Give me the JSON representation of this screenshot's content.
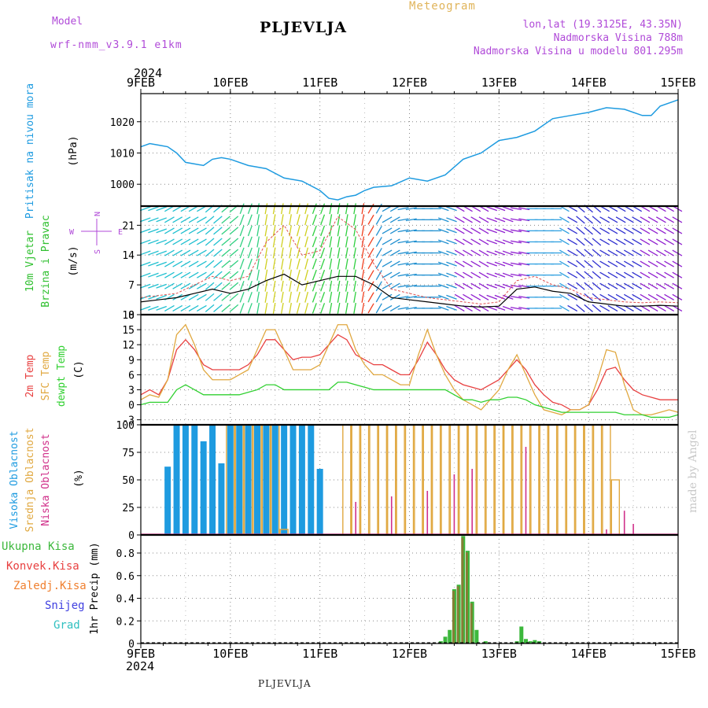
{
  "header": {
    "model_label": "Model",
    "model_name": "wrf-nmm_v3.9.1 e1km",
    "title": "PLJEVLJA",
    "meteogram_label": "Meteogram",
    "lonlat": "lon,lat (19.3125E, 43.35N)",
    "elevation": "Nadmorska Visina 788m",
    "model_elevation": "Nadmorska Visina u modelu 801.295m",
    "year_top": "2024",
    "year_bottom": "2024",
    "bottom_title": "PLJEVLJA",
    "watermark": "made by Angel"
  },
  "colors": {
    "pressure": "#1e9be0",
    "temp2m": "#e84040",
    "sfc": "#e0a840",
    "dewpt": "#30d030",
    "high_cloud": "#1e9be0",
    "mid_cloud": "#e0a840",
    "low_cloud": "#d0308a",
    "precip_total": "#3cb83c",
    "precip_conv": "#e84040",
    "precip_frozen": "#f08030",
    "precip_snow": "#4040e0",
    "precip_grad": "#30c0c0",
    "wind_label": "#30c030",
    "compass": "#b04ad8"
  },
  "chart_data": [
    {
      "type": "line",
      "panel": "pressure",
      "ylabel_colored": "Pritisak na nivou mora",
      "ylabel_unit": "(hPa)",
      "x_days": [
        "9FEB",
        "10FEB",
        "11FEB",
        "12FEB",
        "13FEB",
        "14FEB",
        "15FEB"
      ],
      "yticks": [
        1000,
        1010,
        1020
      ],
      "ylim": [
        993,
        1029
      ],
      "grid": true,
      "x": [
        0,
        0.1,
        0.2,
        0.3,
        0.4,
        0.5,
        0.6,
        0.7,
        0.8,
        0.9,
        1.0,
        1.2,
        1.4,
        1.6,
        1.8,
        2.0,
        2.1,
        2.2,
        2.3,
        2.4,
        2.5,
        2.6,
        2.8,
        3.0,
        3.2,
        3.4,
        3.6,
        3.8,
        4.0,
        4.2,
        4.4,
        4.6,
        4.8,
        5.0,
        5.2,
        5.4,
        5.6,
        5.7,
        5.8,
        6.0
      ],
      "series": [
        {
          "name": "",
          "values": [
            1012,
            1013,
            1012.5,
            1012,
            1010,
            1007,
            1006.5,
            1006,
            1008,
            1008.5,
            1008,
            1006,
            1005,
            1002,
            1001,
            998,
            995.5,
            995,
            996,
            996.5,
            998,
            999,
            999.5,
            1002,
            1001,
            1003,
            1008,
            1010,
            1014,
            1015,
            1017,
            1021,
            1022,
            1023,
            1024.5,
            1024,
            1022,
            1022,
            1025,
            1027
          ]
        }
      ]
    },
    {
      "type": "line",
      "panel": "wind",
      "ylabel_colored": "10m Vjetar",
      "ylabel_colored2": "Brzina i Pravac",
      "ylabel_unit": "(m/s)",
      "compass": {
        "n": "N",
        "s": "S",
        "w": "W",
        "e": "E"
      },
      "yticks": [
        0,
        7,
        14,
        21
      ],
      "ylim": [
        0,
        25.5
      ],
      "grid": true,
      "x": [
        0,
        0.2,
        0.4,
        0.6,
        0.8,
        1.0,
        1.2,
        1.4,
        1.6,
        1.8,
        2.0,
        2.2,
        2.4,
        2.6,
        2.8,
        3.0,
        3.2,
        3.4,
        3.6,
        3.8,
        4.0,
        4.2,
        4.4,
        4.6,
        4.8,
        5.0,
        5.2,
        5.4,
        5.6,
        5.8,
        6.0
      ],
      "series": [
        {
          "name": "",
          "values": [
            3,
            3.5,
            4,
            5,
            6,
            5,
            6,
            8,
            9.5,
            7,
            8,
            9,
            9,
            7,
            4,
            3.5,
            3,
            2.5,
            2,
            1.8,
            2,
            6,
            6.5,
            5.5,
            5,
            3,
            2.5,
            2,
            2,
            2.2,
            2
          ]
        },
        {
          "name": "",
          "values": [
            4,
            4.5,
            5,
            7,
            9,
            8,
            9,
            17,
            21,
            14,
            15,
            23,
            20,
            12,
            6,
            5,
            4,
            3.5,
            3,
            2.5,
            3,
            8,
            9,
            7,
            6,
            4,
            3.5,
            3,
            2.8,
            3,
            2.8
          ]
        }
      ],
      "barb_direction_deg": [
        250,
        250,
        240,
        240,
        230,
        230,
        200,
        190,
        190,
        195,
        200,
        190,
        190,
        210,
        240,
        260,
        270,
        290,
        300,
        300,
        290,
        280,
        270,
        270,
        300,
        310,
        300,
        300,
        300,
        300,
        300
      ]
    },
    {
      "type": "line",
      "panel": "temperature",
      "ylabel_colored": [
        "2m Temp",
        "SFC Temp",
        "dewpt Temp"
      ],
      "ylabel_unit": "(C)",
      "yticks": [
        -3,
        0,
        3,
        6,
        9,
        12,
        15,
        18
      ],
      "ylim": [
        -4,
        18
      ],
      "grid": true,
      "x": [
        0,
        0.1,
        0.2,
        0.3,
        0.4,
        0.5,
        0.6,
        0.7,
        0.8,
        0.9,
        1.0,
        1.1,
        1.2,
        1.3,
        1.4,
        1.5,
        1.6,
        1.7,
        1.8,
        1.9,
        2.0,
        2.1,
        2.2,
        2.3,
        2.4,
        2.5,
        2.6,
        2.7,
        2.8,
        2.9,
        3.0,
        3.1,
        3.2,
        3.3,
        3.4,
        3.5,
        3.6,
        3.7,
        3.8,
        3.9,
        4.0,
        4.1,
        4.2,
        4.3,
        4.4,
        4.5,
        4.6,
        4.7,
        4.8,
        4.9,
        5.0,
        5.1,
        5.2,
        5.3,
        5.4,
        5.5,
        5.6,
        5.7,
        5.8,
        5.9,
        6.0
      ],
      "series": [
        {
          "name": "2m Temp",
          "values": [
            2,
            3,
            2,
            5,
            11,
            13,
            11,
            8,
            7,
            7,
            7,
            7,
            8,
            10,
            13,
            13,
            11,
            9,
            9.5,
            9.5,
            10,
            12,
            14,
            13,
            10,
            9,
            8,
            8,
            7,
            6,
            6,
            9,
            12.5,
            10,
            7,
            5,
            4,
            3.5,
            3,
            4,
            5,
            7,
            9,
            7,
            4,
            2,
            0.5,
            0,
            -1,
            -1,
            0,
            3,
            7,
            7.5,
            5,
            3,
            2,
            1.5,
            1,
            1,
            1
          ]
        },
        {
          "name": "SFC Temp",
          "values": [
            1,
            2,
            1.5,
            5,
            14,
            16,
            12,
            7,
            5,
            5,
            5,
            6,
            7,
            11,
            15,
            15,
            11,
            7,
            7,
            7,
            8,
            12,
            16,
            16,
            11,
            8,
            6,
            6,
            5,
            4,
            4,
            10,
            15,
            10,
            6,
            3,
            1,
            0,
            -1,
            1,
            3,
            7,
            10,
            6,
            2,
            -1,
            -1.5,
            -2,
            -1,
            -1,
            0,
            5,
            11,
            10.5,
            4,
            -1,
            -2,
            -2,
            -1.5,
            -1,
            -1.5
          ]
        },
        {
          "name": "dewpt Temp",
          "values": [
            0,
            0.5,
            0.5,
            0.5,
            3,
            4,
            3,
            2,
            2,
            2,
            2,
            2,
            2.5,
            3,
            4,
            4,
            3,
            3,
            3,
            3,
            3,
            3,
            4.5,
            4.5,
            4,
            3.5,
            3,
            3,
            3,
            3,
            3,
            3,
            3,
            3,
            3,
            2,
            1,
            1,
            0.5,
            1,
            1,
            1.5,
            1.5,
            1,
            0,
            -0.5,
            -1,
            -1.5,
            -1.5,
            -1.5,
            -1.5,
            -1.5,
            -1.5,
            -1.5,
            -2,
            -2,
            -2,
            -2.5,
            -2.5,
            -2.5,
            -2
          ]
        }
      ]
    },
    {
      "type": "bar",
      "panel": "cloud",
      "ylabel_colored": [
        "Visoka Oblacnost",
        "Srednja Oblacnost",
        "Niska Oblacnost"
      ],
      "ylabel_unit": "(%)",
      "yticks": [
        0,
        25,
        50,
        75,
        100
      ],
      "ylim": [
        0,
        100
      ],
      "grid": true,
      "x": [
        0.3,
        0.4,
        0.5,
        0.6,
        0.7,
        0.8,
        0.9,
        1.0,
        1.1,
        1.2,
        1.3,
        1.4,
        1.5,
        1.6,
        1.7,
        1.8,
        1.9,
        2.0,
        2.1,
        2.2,
        2.3,
        2.4,
        2.5,
        2.6,
        2.7,
        2.8,
        2.9,
        3.0,
        3.1,
        3.2,
        3.3,
        3.4,
        3.5,
        3.6,
        3.7,
        3.8,
        3.9,
        4.0,
        4.1,
        4.2,
        4.3,
        4.4,
        4.5,
        4.6,
        4.7,
        4.8,
        4.9,
        5.0,
        5.1,
        5.2,
        5.3,
        5.4,
        5.5
      ],
      "series": [
        {
          "name": "Visoka Oblacnost",
          "values": [
            62,
            100,
            100,
            100,
            85,
            100,
            65,
            100,
            100,
            100,
            100,
            100,
            100,
            100,
            100,
            100,
            100,
            60,
            0,
            0,
            0,
            0,
            0,
            0,
            0,
            0,
            0,
            0,
            0,
            0,
            0,
            0,
            0,
            0,
            0,
            0,
            0,
            0,
            0,
            0,
            0,
            0,
            0,
            0,
            0,
            0,
            0,
            0,
            0,
            0,
            0,
            0,
            0
          ]
        },
        {
          "name": "Srednja Oblacnost",
          "values": [
            0,
            0,
            0,
            0,
            0,
            0,
            0,
            100,
            100,
            100,
            100,
            100,
            100,
            5,
            0,
            0,
            0,
            0,
            0,
            0,
            100,
            100,
            100,
            100,
            100,
            100,
            100,
            100,
            100,
            100,
            100,
            100,
            100,
            100,
            100,
            100,
            100,
            100,
            100,
            100,
            100,
            100,
            100,
            100,
            100,
            100,
            100,
            100,
            100,
            100,
            50,
            0,
            0
          ]
        },
        {
          "name": "Niska Oblacnost",
          "values": [
            0,
            0,
            0,
            0,
            0,
            0,
            0,
            0,
            0,
            0,
            0,
            0,
            0,
            0,
            0,
            0,
            0,
            0,
            0,
            0,
            0,
            30,
            0,
            0,
            0,
            35,
            0,
            0,
            0,
            40,
            0,
            0,
            55,
            0,
            60,
            0,
            0,
            0,
            0,
            0,
            80,
            0,
            0,
            0,
            0,
            0,
            0,
            0,
            0,
            5,
            0,
            22,
            10
          ]
        }
      ]
    },
    {
      "type": "bar",
      "panel": "precip",
      "ylabel_unit": "1hr Precip (mm)",
      "legend": [
        "Ukupna Kisa",
        "Konvek.Kisa",
        "Zaledj.Kisa",
        "Snijeg",
        "Grad"
      ],
      "yticks": [
        0,
        0.2,
        0.4,
        0.6,
        0.8
      ],
      "ylim": [
        0,
        0.96
      ],
      "grid": true,
      "x": [
        3.35,
        3.4,
        3.45,
        3.5,
        3.55,
        3.6,
        3.65,
        3.7,
        3.75,
        3.85,
        4.2,
        4.25,
        4.3,
        4.35,
        4.4,
        4.45
      ],
      "series": [
        {
          "name": "Ukupna Kisa",
          "values": [
            0.02,
            0.06,
            0.12,
            0.48,
            0.52,
            0.95,
            0.82,
            0.37,
            0.12,
            0.02,
            0.02,
            0.15,
            0.04,
            0.02,
            0.03,
            0.02
          ]
        }
      ]
    }
  ]
}
